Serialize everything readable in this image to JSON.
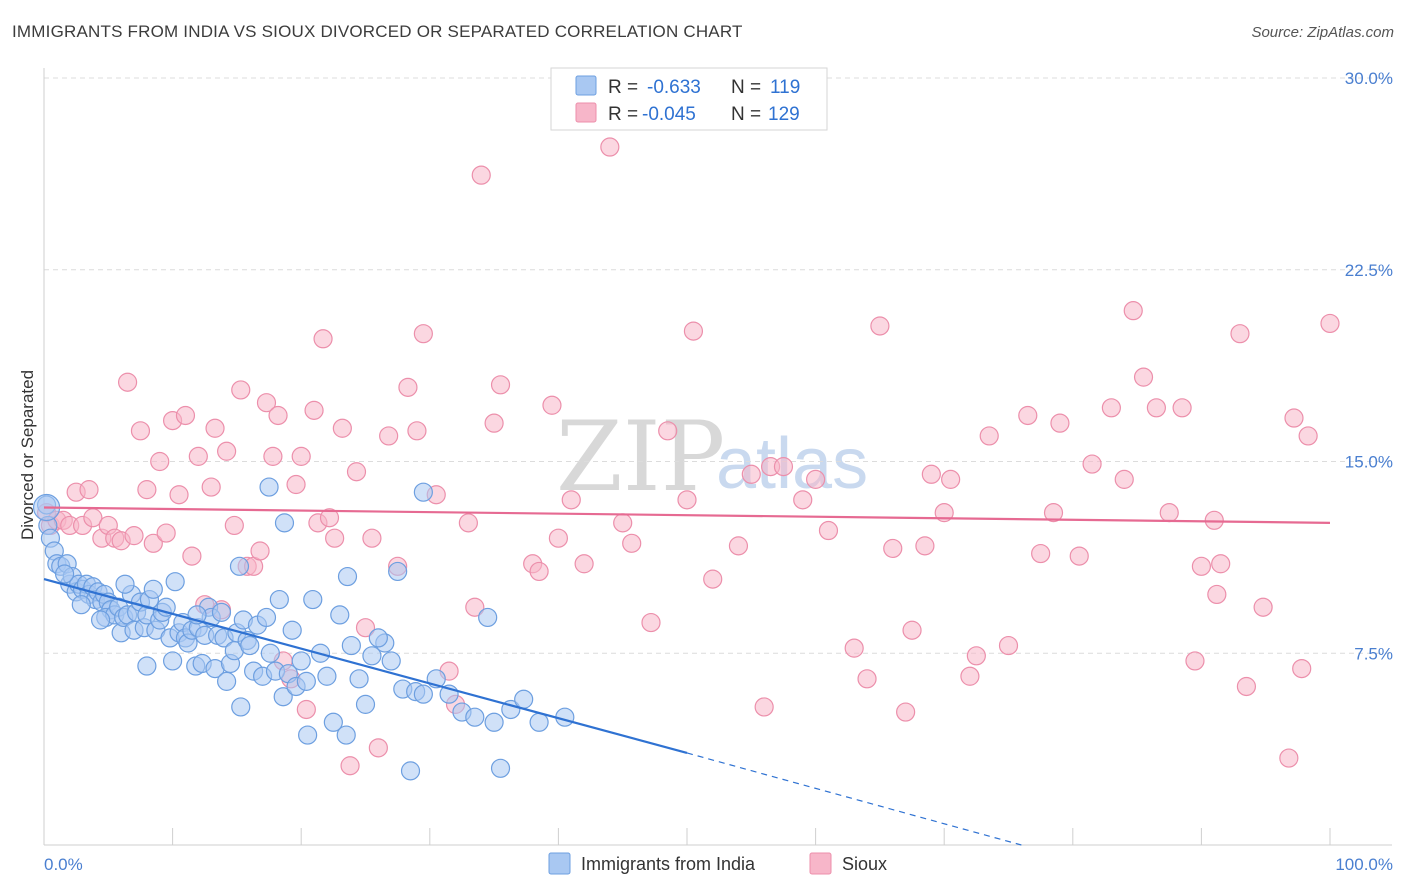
{
  "title": "IMMIGRANTS FROM INDIA VS SIOUX DIVORCED OR SEPARATED CORRELATION CHART",
  "source": "Source: ZipAtlas.com",
  "watermark": {
    "zip": "ZIP",
    "atlas": "atlas"
  },
  "legend": {
    "rows": [
      {
        "r_label": "R =",
        "r_value": "-0.633",
        "n_label": "N =",
        "n_value": "119",
        "color": "#a9c8f2"
      },
      {
        "r_label": "R =",
        "r_value": "-0.045",
        "n_label": "N =",
        "n_value": "129",
        "color": "#f7b6c9"
      }
    ]
  },
  "colors": {
    "india_fill": "#a9c8f2",
    "india_stroke": "#6d9fe0",
    "india_line": "#2f72d2",
    "sioux_fill": "#f7b6c9",
    "sioux_stroke": "#ec8fab",
    "sioux_line": "#e66a92",
    "tick_text": "#4a7fd0",
    "grid": "#dcdcdc"
  },
  "chart_data": {
    "type": "scatter",
    "xlabel": "",
    "ylabel": "Divorced or Separated",
    "xlim": [
      0,
      100
    ],
    "ylim": [
      0,
      30
    ],
    "x_tick_labels": [
      "0.0%",
      "100.0%"
    ],
    "y_ticks": [
      7.5,
      15.0,
      22.5,
      30.0
    ],
    "y_tick_labels": [
      "7.5%",
      "15.0%",
      "22.5%",
      "30.0%"
    ],
    "grid": "horizontal dashed",
    "legend_position": "top-center",
    "series": [
      {
        "name": "Immigrants from India",
        "trend": {
          "x0": 0,
          "y0": 10.4,
          "x1": 50,
          "y1": 3.6,
          "dashed_to_x": 76,
          "dashed_to_y": 0
        },
        "points": [
          [
            0.2,
            13.3
          ],
          [
            0.3,
            12.5
          ],
          [
            0.5,
            12.0
          ],
          [
            0.8,
            11.5
          ],
          [
            1.0,
            11.0
          ],
          [
            1.3,
            10.9
          ],
          [
            1.8,
            11.0
          ],
          [
            2.0,
            10.2
          ],
          [
            2.2,
            10.5
          ],
          [
            2.5,
            9.9
          ],
          [
            2.7,
            10.2
          ],
          [
            3.0,
            10.0
          ],
          [
            3.3,
            10.2
          ],
          [
            3.5,
            9.8
          ],
          [
            3.8,
            10.1
          ],
          [
            4.0,
            9.6
          ],
          [
            4.2,
            9.9
          ],
          [
            4.5,
            9.5
          ],
          [
            4.7,
            9.8
          ],
          [
            5.0,
            9.5
          ],
          [
            5.2,
            9.2
          ],
          [
            4.8,
            8.9
          ],
          [
            5.5,
            9.0
          ],
          [
            5.8,
            9.3
          ],
          [
            6.0,
            8.3
          ],
          [
            6.2,
            8.9
          ],
          [
            6.5,
            9.0
          ],
          [
            6.8,
            9.8
          ],
          [
            7.0,
            8.4
          ],
          [
            7.2,
            9.1
          ],
          [
            7.5,
            9.5
          ],
          [
            7.8,
            8.5
          ],
          [
            8.0,
            9.0
          ],
          [
            8.2,
            9.6
          ],
          [
            8.5,
            10.0
          ],
          [
            8.7,
            8.4
          ],
          [
            9.0,
            8.8
          ],
          [
            9.2,
            9.1
          ],
          [
            9.5,
            9.3
          ],
          [
            9.8,
            8.1
          ],
          [
            10.0,
            7.2
          ],
          [
            10.2,
            10.3
          ],
          [
            10.5,
            8.3
          ],
          [
            10.8,
            8.7
          ],
          [
            11.0,
            8.1
          ],
          [
            11.2,
            7.9
          ],
          [
            11.5,
            8.4
          ],
          [
            11.8,
            7.0
          ],
          [
            12.0,
            8.5
          ],
          [
            12.3,
            7.1
          ],
          [
            12.5,
            8.2
          ],
          [
            12.8,
            9.3
          ],
          [
            13.0,
            8.9
          ],
          [
            13.3,
            6.9
          ],
          [
            13.5,
            8.2
          ],
          [
            13.8,
            9.1
          ],
          [
            14.0,
            8.1
          ],
          [
            14.2,
            6.4
          ],
          [
            14.5,
            7.1
          ],
          [
            14.8,
            7.6
          ],
          [
            15.0,
            8.3
          ],
          [
            15.3,
            5.4
          ],
          [
            15.5,
            8.8
          ],
          [
            15.8,
            8.0
          ],
          [
            16.0,
            7.8
          ],
          [
            16.3,
            6.8
          ],
          [
            16.6,
            8.6
          ],
          [
            17.0,
            6.6
          ],
          [
            17.3,
            8.9
          ],
          [
            17.6,
            7.5
          ],
          [
            18.0,
            6.8
          ],
          [
            18.3,
            9.6
          ],
          [
            18.6,
            5.8
          ],
          [
            19.0,
            6.7
          ],
          [
            19.3,
            8.4
          ],
          [
            19.6,
            6.2
          ],
          [
            20.0,
            7.2
          ],
          [
            20.5,
            4.3
          ],
          [
            20.9,
            9.6
          ],
          [
            21.5,
            7.5
          ],
          [
            22.0,
            6.6
          ],
          [
            22.5,
            4.8
          ],
          [
            23.0,
            9.0
          ],
          [
            23.5,
            4.3
          ],
          [
            23.9,
            7.8
          ],
          [
            24.5,
            6.5
          ],
          [
            25.0,
            5.5
          ],
          [
            25.5,
            7.4
          ],
          [
            26.5,
            7.9
          ],
          [
            27.0,
            7.2
          ],
          [
            27.9,
            6.1
          ],
          [
            28.5,
            2.9
          ],
          [
            28.9,
            6.0
          ],
          [
            29.5,
            5.9
          ],
          [
            30.5,
            6.5
          ],
          [
            31.5,
            5.9
          ],
          [
            32.5,
            5.2
          ],
          [
            33.5,
            5.0
          ],
          [
            34.5,
            8.9
          ],
          [
            35.0,
            4.8
          ],
          [
            35.5,
            3.0
          ],
          [
            36.3,
            5.3
          ],
          [
            37.3,
            5.7
          ],
          [
            38.5,
            4.8
          ],
          [
            40.5,
            5.0
          ],
          [
            8.0,
            7.0
          ],
          [
            4.4,
            8.8
          ],
          [
            2.9,
            9.4
          ],
          [
            1.6,
            10.6
          ],
          [
            6.3,
            10.2
          ],
          [
            15.2,
            10.9
          ],
          [
            17.5,
            14.0
          ],
          [
            18.7,
            12.6
          ],
          [
            23.6,
            10.5
          ],
          [
            27.5,
            10.7
          ],
          [
            29.5,
            13.8
          ],
          [
            26.0,
            8.1
          ],
          [
            20.4,
            6.4
          ],
          [
            11.9,
            9.0
          ]
        ]
      },
      {
        "name": "Sioux",
        "trend": {
          "x0": 0,
          "y0": 13.2,
          "x1": 100,
          "y1": 12.6
        },
        "points": [
          [
            0.2,
            13.0
          ],
          [
            0.5,
            12.5
          ],
          [
            1.0,
            12.7
          ],
          [
            1.5,
            12.7
          ],
          [
            2.0,
            12.5
          ],
          [
            2.5,
            13.8
          ],
          [
            3.0,
            12.5
          ],
          [
            3.5,
            13.9
          ],
          [
            3.8,
            12.8
          ],
          [
            4.5,
            12.0
          ],
          [
            5.0,
            12.5
          ],
          [
            5.5,
            12.0
          ],
          [
            6.0,
            11.9
          ],
          [
            6.5,
            18.1
          ],
          [
            7.0,
            12.1
          ],
          [
            7.5,
            16.2
          ],
          [
            8.0,
            13.9
          ],
          [
            8.5,
            11.8
          ],
          [
            9.0,
            15.0
          ],
          [
            9.5,
            12.2
          ],
          [
            10.0,
            16.6
          ],
          [
            10.5,
            13.7
          ],
          [
            11.0,
            16.8
          ],
          [
            11.5,
            11.3
          ],
          [
            12.0,
            15.2
          ],
          [
            12.5,
            9.4
          ],
          [
            13.0,
            14.0
          ],
          [
            13.3,
            16.3
          ],
          [
            13.8,
            9.2
          ],
          [
            14.2,
            15.4
          ],
          [
            14.8,
            12.5
          ],
          [
            15.3,
            17.8
          ],
          [
            15.8,
            10.9
          ],
          [
            16.3,
            10.9
          ],
          [
            16.8,
            11.5
          ],
          [
            17.3,
            17.3
          ],
          [
            17.8,
            15.2
          ],
          [
            18.2,
            16.8
          ],
          [
            18.6,
            7.2
          ],
          [
            19.2,
            6.5
          ],
          [
            19.6,
            14.1
          ],
          [
            20.0,
            15.2
          ],
          [
            20.4,
            5.3
          ],
          [
            21.0,
            17.0
          ],
          [
            21.3,
            12.6
          ],
          [
            21.7,
            19.8
          ],
          [
            22.2,
            12.8
          ],
          [
            22.6,
            12.0
          ],
          [
            23.2,
            16.3
          ],
          [
            23.8,
            3.1
          ],
          [
            24.3,
            14.6
          ],
          [
            25.0,
            8.5
          ],
          [
            25.5,
            12.0
          ],
          [
            26.0,
            3.8
          ],
          [
            26.8,
            16.0
          ],
          [
            27.5,
            10.9
          ],
          [
            28.3,
            17.9
          ],
          [
            29.0,
            16.2
          ],
          [
            29.5,
            20.0
          ],
          [
            30.5,
            13.7
          ],
          [
            31.5,
            6.8
          ],
          [
            32.0,
            5.5
          ],
          [
            33.0,
            12.6
          ],
          [
            33.5,
            9.3
          ],
          [
            34.0,
            26.2
          ],
          [
            35.0,
            16.5
          ],
          [
            35.5,
            18.0
          ],
          [
            38.0,
            11.0
          ],
          [
            38.5,
            10.7
          ],
          [
            39.5,
            17.2
          ],
          [
            40.0,
            12.0
          ],
          [
            41.0,
            13.5
          ],
          [
            42.0,
            11.0
          ],
          [
            44.0,
            27.3
          ],
          [
            45.0,
            12.6
          ],
          [
            45.7,
            11.8
          ],
          [
            47.2,
            8.7
          ],
          [
            48.5,
            16.2
          ],
          [
            50.0,
            13.5
          ],
          [
            50.5,
            20.1
          ],
          [
            52.0,
            10.4
          ],
          [
            54.0,
            11.7
          ],
          [
            55.0,
            14.5
          ],
          [
            56.0,
            5.4
          ],
          [
            56.5,
            14.8
          ],
          [
            57.5,
            14.8
          ],
          [
            59.0,
            13.5
          ],
          [
            60.0,
            14.3
          ],
          [
            61.0,
            12.3
          ],
          [
            63.0,
            7.7
          ],
          [
            64.0,
            6.5
          ],
          [
            65.0,
            20.3
          ],
          [
            66.0,
            11.6
          ],
          [
            67.0,
            5.2
          ],
          [
            67.5,
            8.4
          ],
          [
            68.5,
            11.7
          ],
          [
            69.0,
            14.5
          ],
          [
            70.0,
            13.0
          ],
          [
            70.5,
            14.3
          ],
          [
            72.5,
            7.4
          ],
          [
            72.0,
            6.6
          ],
          [
            73.5,
            16.0
          ],
          [
            75.0,
            7.8
          ],
          [
            76.5,
            16.8
          ],
          [
            77.5,
            11.4
          ],
          [
            78.5,
            13.0
          ],
          [
            79.0,
            16.5
          ],
          [
            80.5,
            11.3
          ],
          [
            81.5,
            14.9
          ],
          [
            83.0,
            17.1
          ],
          [
            84.0,
            14.3
          ],
          [
            84.7,
            20.9
          ],
          [
            85.5,
            18.3
          ],
          [
            86.5,
            17.1
          ],
          [
            87.5,
            13.0
          ],
          [
            88.5,
            17.1
          ],
          [
            89.5,
            7.2
          ],
          [
            90.0,
            10.9
          ],
          [
            91.0,
            12.7
          ],
          [
            91.2,
            9.8
          ],
          [
            91.5,
            11.0
          ],
          [
            93.0,
            20.0
          ],
          [
            93.5,
            6.2
          ],
          [
            94.8,
            9.3
          ],
          [
            96.8,
            3.4
          ],
          [
            97.2,
            16.7
          ],
          [
            97.8,
            6.9
          ],
          [
            98.3,
            16.0
          ],
          [
            100.0,
            20.4
          ]
        ]
      }
    ]
  },
  "bottom_legend": [
    {
      "label": "Immigrants from India",
      "color": "#a9c8f2"
    },
    {
      "label": "Sioux",
      "color": "#f7b6c9"
    }
  ]
}
